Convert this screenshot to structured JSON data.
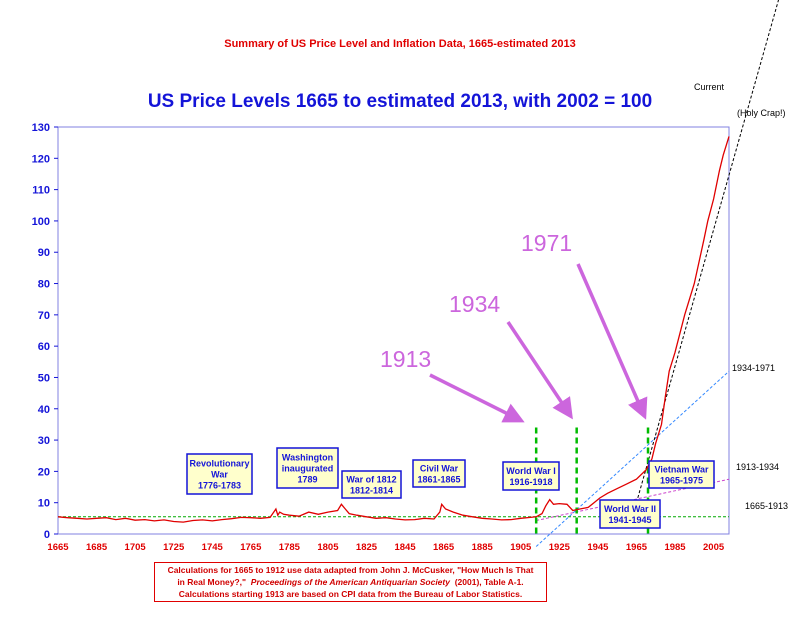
{
  "chart_data": {
    "type": "line",
    "suptitle": "Summary of US Price Level and Inflation Data, 1665-estimated 2013",
    "title": "US Price Levels 1665 to estimated 2013, with 2002 = 100",
    "xlim": [
      1665,
      2013
    ],
    "ylim": [
      0,
      130
    ],
    "y_ticks": [
      0,
      10,
      20,
      30,
      40,
      50,
      60,
      70,
      80,
      90,
      100,
      110,
      120,
      130
    ],
    "x_ticks": [
      1665,
      1685,
      1705,
      1725,
      1745,
      1765,
      1785,
      1805,
      1825,
      1845,
      1865,
      1885,
      1905,
      1925,
      1945,
      1965,
      1985,
      2005
    ],
    "grid": false,
    "series": [
      {
        "color": "#e00000",
        "x": [
          1665,
          1670,
          1675,
          1680,
          1685,
          1690,
          1695,
          1700,
          1705,
          1710,
          1715,
          1720,
          1725,
          1730,
          1735,
          1740,
          1745,
          1750,
          1755,
          1760,
          1765,
          1770,
          1775,
          1778,
          1779,
          1780,
          1782,
          1785,
          1790,
          1795,
          1800,
          1805,
          1810,
          1812,
          1814,
          1816,
          1820,
          1825,
          1830,
          1835,
          1840,
          1845,
          1850,
          1855,
          1860,
          1863,
          1864,
          1866,
          1870,
          1875,
          1880,
          1885,
          1890,
          1895,
          1900,
          1905,
          1910,
          1913,
          1916,
          1918,
          1920,
          1922,
          1925,
          1929,
          1932,
          1934,
          1940,
          1943,
          1946,
          1950,
          1955,
          1960,
          1965,
          1970,
          1973,
          1975,
          1978,
          1980,
          1982,
          1985,
          1990,
          1995,
          2000,
          2002,
          2005,
          2008,
          2010,
          2013
        ],
        "values": [
          5.5,
          5.2,
          5.0,
          4.8,
          5.0,
          5.2,
          4.6,
          5.0,
          4.4,
          4.6,
          4.2,
          4.5,
          4.0,
          3.8,
          4.3,
          4.5,
          4.2,
          4.6,
          4.9,
          5.3,
          5.2,
          5.0,
          5.3,
          8.0,
          6.0,
          7.0,
          6.3,
          6.0,
          5.7,
          7.0,
          6.3,
          7.0,
          7.5,
          9.5,
          8.0,
          6.5,
          6.0,
          5.5,
          5.0,
          5.2,
          4.8,
          4.5,
          4.6,
          5.0,
          4.8,
          7.0,
          9.5,
          8.0,
          7.0,
          6.0,
          5.5,
          5.0,
          4.8,
          4.5,
          4.6,
          5.0,
          5.3,
          5.5,
          6.5,
          9.0,
          11.0,
          9.5,
          9.7,
          9.5,
          7.5,
          7.8,
          8.5,
          10.0,
          11.5,
          13.0,
          14.5,
          16.0,
          17.5,
          20.5,
          24.0,
          29.0,
          35.0,
          44.0,
          52.0,
          58.0,
          70.0,
          80.0,
          94.0,
          100.0,
          107.0,
          116.0,
          121.0,
          127.0
        ]
      }
    ],
    "annotations": {
      "events": [
        {
          "lines": [
            "Revolutionary",
            "War",
            "1776-1783"
          ]
        },
        {
          "lines": [
            "Washington",
            "inaugurated",
            "1789"
          ]
        },
        {
          "lines": [
            "War of 1812",
            "1812-1814"
          ]
        },
        {
          "lines": [
            "Civil War",
            "1861-1865"
          ]
        },
        {
          "lines": [
            "World War I",
            "1916-1918"
          ]
        },
        {
          "lines": [
            "World War II",
            "1941-1945"
          ]
        },
        {
          "lines": [
            "Vietnam War",
            "1965-1975"
          ]
        }
      ],
      "arrows": [
        "1913",
        "1934",
        "1971"
      ],
      "vlines": [
        1913,
        1934,
        1971
      ],
      "trendlines": [
        {
          "label": "1665-1913",
          "color": "#00aa00",
          "x": [
            1665,
            2013
          ],
          "y": [
            5.5,
            5.5
          ]
        },
        {
          "label": "1913-1934",
          "color": "#cc44cc",
          "x": [
            1913,
            2013
          ],
          "y": [
            4.3,
            17.5
          ]
        },
        {
          "label": "1934-1971",
          "color": "#3388ff",
          "x": [
            1913,
            2013
          ],
          "y": [
            -4.0,
            52.0
          ]
        },
        {
          "label": "Current",
          "label2": "(Holy Crap!)",
          "color": "#000000",
          "x": [
            1965,
            2043
          ],
          "y": [
            10.0,
            180.0
          ]
        }
      ]
    },
    "caption_lines": [
      "Calculations for 1665 to 1912 use data adapted from John J. McCusker, \"How Much Is That",
      "in Real Money?,\"",
      "Proceedings of the American Antiquarian Society",
      "(2001), Table A-1.",
      "Calculations starting 1913 are based on CPI data from the Bureau of Labor Statistics."
    ]
  }
}
